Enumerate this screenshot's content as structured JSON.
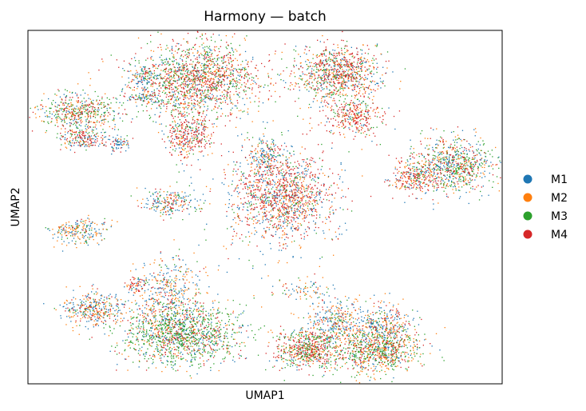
{
  "chart_data": {
    "type": "scatter",
    "title": "Harmony — batch",
    "xlabel": "UMAP1",
    "ylabel": "UMAP2",
    "xlim": [
      0,
      100
    ],
    "ylim": [
      0,
      100
    ],
    "grid": false,
    "legend": "right",
    "ticks": "none",
    "series": [
      {
        "name": "M1",
        "color": "#1f77b4"
      },
      {
        "name": "M2",
        "color": "#ff7f0e"
      },
      {
        "name": "M3",
        "color": "#2ca02c"
      },
      {
        "name": "M4",
        "color": "#d62728"
      }
    ],
    "clusters": [
      {
        "x": 36.0,
        "y": 86.0,
        "sx": 6.5,
        "sy": 5.5,
        "n": 1500,
        "mix": [
          0.15,
          0.2,
          0.3,
          0.35
        ]
      },
      {
        "x": 24.5,
        "y": 87.0,
        "sx": 1.8,
        "sy": 1.6,
        "n": 110,
        "mix": [
          0.5,
          0.2,
          0.15,
          0.15
        ]
      },
      {
        "x": 24.5,
        "y": 81.0,
        "sx": 1.8,
        "sy": 1.0,
        "n": 80,
        "mix": [
          0.45,
          0.2,
          0.2,
          0.15
        ]
      },
      {
        "x": 10.5,
        "y": 77.0,
        "sx": 4.5,
        "sy": 2.5,
        "n": 500,
        "mix": [
          0.2,
          0.25,
          0.35,
          0.2
        ]
      },
      {
        "x": 11.5,
        "y": 69.5,
        "sx": 2.5,
        "sy": 1.6,
        "n": 200,
        "mix": [
          0.25,
          0.2,
          0.15,
          0.4
        ]
      },
      {
        "x": 19.0,
        "y": 68.0,
        "sx": 1.2,
        "sy": 1.4,
        "n": 70,
        "mix": [
          0.6,
          0.15,
          0.1,
          0.15
        ]
      },
      {
        "x": 34.0,
        "y": 70.5,
        "sx": 2.5,
        "sy": 3.3,
        "n": 350,
        "mix": [
          0.15,
          0.15,
          0.15,
          0.55
        ]
      },
      {
        "x": 65.5,
        "y": 88.0,
        "sx": 4.5,
        "sy": 3.8,
        "n": 900,
        "mix": [
          0.2,
          0.25,
          0.2,
          0.35
        ]
      },
      {
        "x": 69.0,
        "y": 76.0,
        "sx": 3.0,
        "sy": 2.8,
        "n": 320,
        "mix": [
          0.1,
          0.2,
          0.15,
          0.55
        ]
      },
      {
        "x": 90.0,
        "y": 62.0,
        "sx": 4.0,
        "sy": 3.8,
        "n": 750,
        "mix": [
          0.3,
          0.2,
          0.3,
          0.2
        ]
      },
      {
        "x": 81.5,
        "y": 58.5,
        "sx": 2.5,
        "sy": 2.5,
        "n": 280,
        "mix": [
          0.15,
          0.2,
          0.15,
          0.5
        ]
      },
      {
        "x": 50.0,
        "y": 65.0,
        "sx": 2.0,
        "sy": 2.3,
        "n": 160,
        "mix": [
          0.45,
          0.25,
          0.1,
          0.2
        ]
      },
      {
        "x": 54.0,
        "y": 53.5,
        "sx": 5.5,
        "sy": 6.0,
        "n": 1300,
        "mix": [
          0.25,
          0.2,
          0.1,
          0.45
        ]
      },
      {
        "x": 30.0,
        "y": 51.5,
        "sx": 3.0,
        "sy": 1.8,
        "n": 220,
        "mix": [
          0.4,
          0.25,
          0.15,
          0.2
        ]
      },
      {
        "x": 10.5,
        "y": 43.0,
        "sx": 3.0,
        "sy": 2.0,
        "n": 220,
        "mix": [
          0.45,
          0.35,
          0.1,
          0.1
        ]
      },
      {
        "x": 14.0,
        "y": 21.0,
        "sx": 3.5,
        "sy": 2.5,
        "n": 360,
        "mix": [
          0.45,
          0.3,
          0.1,
          0.15
        ]
      },
      {
        "x": 22.5,
        "y": 28.0,
        "sx": 1.3,
        "sy": 1.2,
        "n": 70,
        "mix": [
          0.2,
          0.2,
          0.1,
          0.5
        ]
      },
      {
        "x": 30.0,
        "y": 26.0,
        "sx": 3.5,
        "sy": 5.0,
        "n": 420,
        "mix": [
          0.4,
          0.35,
          0.1,
          0.15
        ]
      },
      {
        "x": 32.5,
        "y": 14.0,
        "sx": 6.0,
        "sy": 4.2,
        "n": 1300,
        "mix": [
          0.2,
          0.15,
          0.5,
          0.15
        ]
      },
      {
        "x": 58.0,
        "y": 27.0,
        "sx": 3.5,
        "sy": 1.5,
        "n": 80,
        "mix": [
          0.3,
          0.35,
          0.15,
          0.2
        ]
      },
      {
        "x": 65.0,
        "y": 18.0,
        "sx": 3.2,
        "sy": 3.0,
        "n": 300,
        "mix": [
          0.45,
          0.3,
          0.1,
          0.15
        ]
      },
      {
        "x": 59.0,
        "y": 10.0,
        "sx": 3.5,
        "sy": 3.0,
        "n": 650,
        "mix": [
          0.15,
          0.2,
          0.3,
          0.35
        ]
      },
      {
        "x": 75.0,
        "y": 17.0,
        "sx": 3.5,
        "sy": 3.0,
        "n": 280,
        "mix": [
          0.4,
          0.35,
          0.1,
          0.15
        ]
      },
      {
        "x": 74.0,
        "y": 10.0,
        "sx": 4.5,
        "sy": 3.5,
        "n": 850,
        "mix": [
          0.15,
          0.3,
          0.35,
          0.2
        ]
      },
      {
        "x": 50.0,
        "y": 45.0,
        "sx": 9.0,
        "sy": 9.0,
        "n": 130,
        "mix": [
          0.3,
          0.3,
          0.2,
          0.2
        ]
      },
      {
        "x": 45.0,
        "y": 78.0,
        "sx": 14.0,
        "sy": 8.0,
        "n": 90,
        "mix": [
          0.3,
          0.25,
          0.25,
          0.2
        ]
      }
    ]
  }
}
